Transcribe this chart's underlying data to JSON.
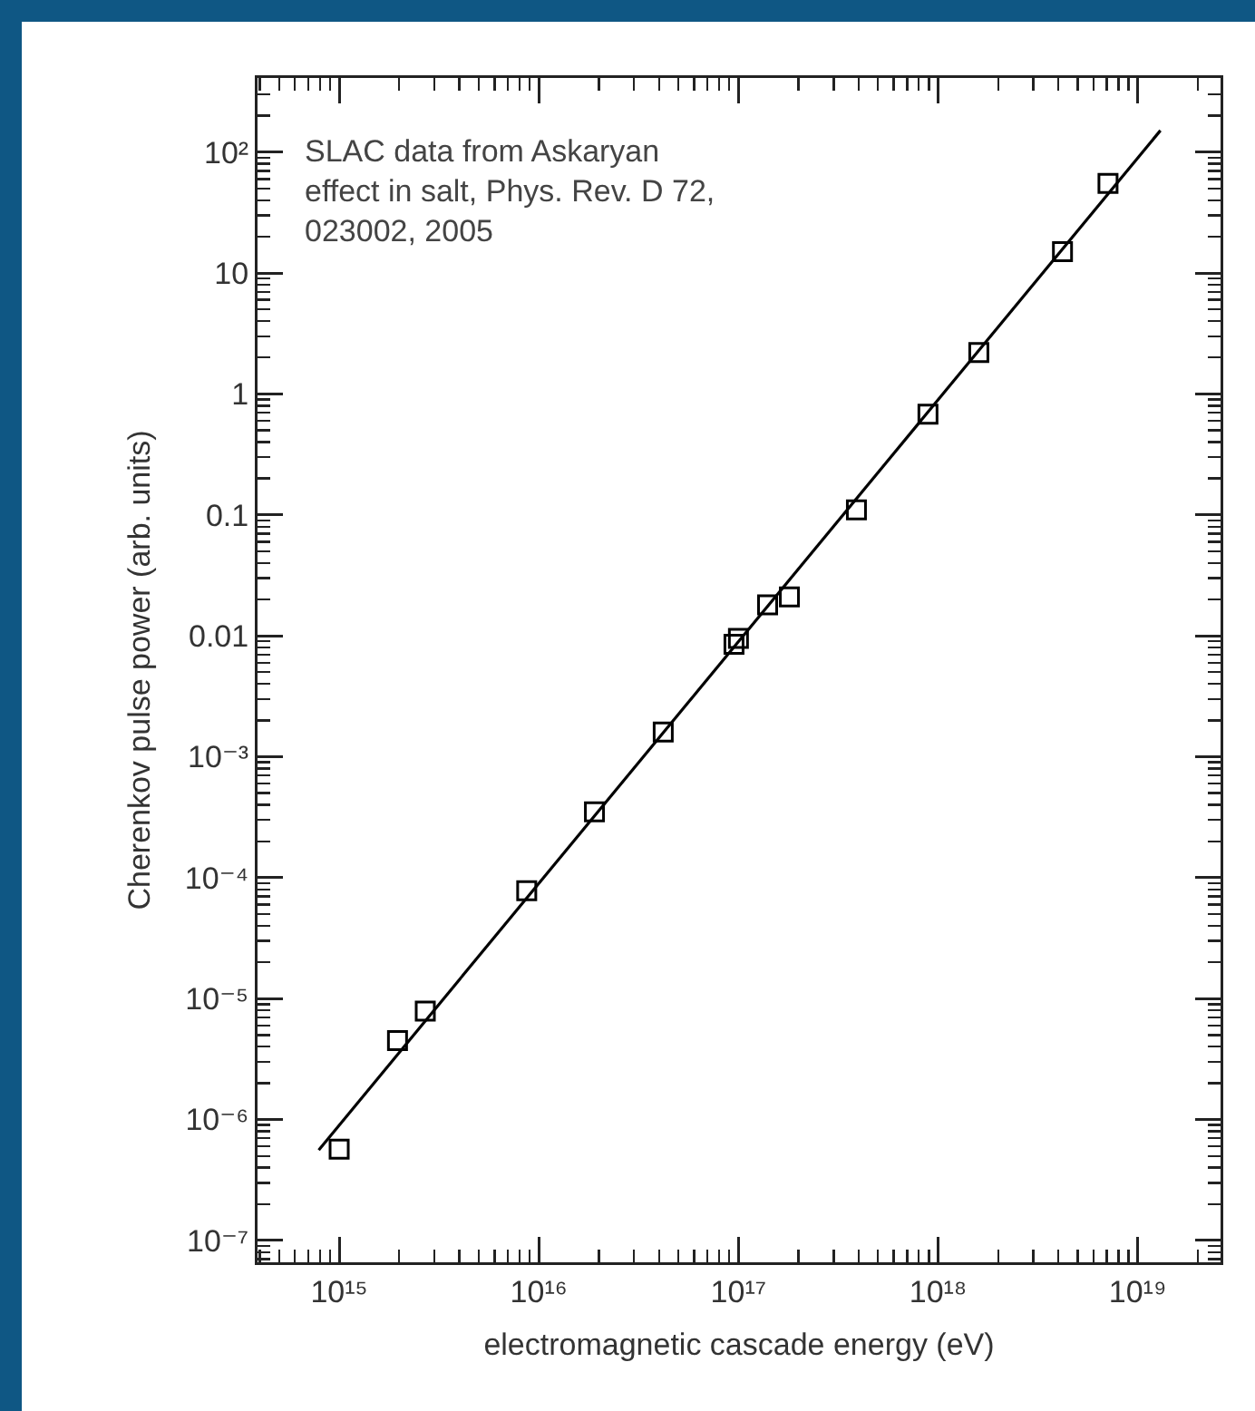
{
  "chart_data": {
    "type": "scatter",
    "xlabel": "electromagnetic cascade energy (eV)",
    "ylabel": "Cherenkov pulse power (arb. units)",
    "annotations": [
      "SLAC data from Askaryan\neffect in salt, Phys. Rev. D 72,\n023002, 2005"
    ],
    "log": "xy",
    "marker": "square",
    "xlim": [
      390000000000000.0,
      2.6e+19
    ],
    "xticks": [
      {
        "value": 1000000000000000.0,
        "label": "10¹⁵"
      },
      {
        "value": 1e+16,
        "label": "10¹⁶"
      },
      {
        "value": 1e+17,
        "label": "10¹⁷"
      },
      {
        "value": 1e+18,
        "label": "10¹⁸"
      },
      {
        "value": 1e+19,
        "label": "10¹⁹"
      }
    ],
    "ylim": [
      6.6e-08,
      410
    ],
    "yticks": [
      {
        "value": 1e-07,
        "label": "10⁻⁷"
      },
      {
        "value": 1e-06,
        "label": "10⁻⁶"
      },
      {
        "value": 1e-05,
        "label": "10⁻⁵"
      },
      {
        "value": 0.0001,
        "label": "10⁻⁴"
      },
      {
        "value": 0.001,
        "label": "10⁻³"
      },
      0.01,
      0.1,
      1,
      10,
      {
        "value": 100,
        "label": "10²"
      }
    ],
    "series": [
      {
        "color": "#000000",
        "x": [
          1000000000000000.0,
          1960000000000000.0,
          2700000000000000.0,
          8700000000000000.0,
          1.9e+16,
          4.2e+16,
          9.5e+16,
          1e+17,
          1.4e+17,
          1.8e+17,
          3.9e+17,
          8.9e+17,
          1.6e+18,
          4.2e+18,
          7.1e+18
        ],
        "values": [
          5.7e-07,
          4.5e-06,
          7.9e-06,
          7.8e-05,
          0.00035,
          0.0016,
          0.0085,
          0.0095,
          0.018,
          0.021,
          0.11,
          0.68,
          2.2,
          15,
          55
        ]
      },
      {
        "type": "line",
        "color": "#000000",
        "marker": "none",
        "line_style": "solid",
        "x": [
          790000000000000.0,
          1.3e+19
        ],
        "values": [
          5.6e-07,
          151
        ]
      }
    ]
  }
}
